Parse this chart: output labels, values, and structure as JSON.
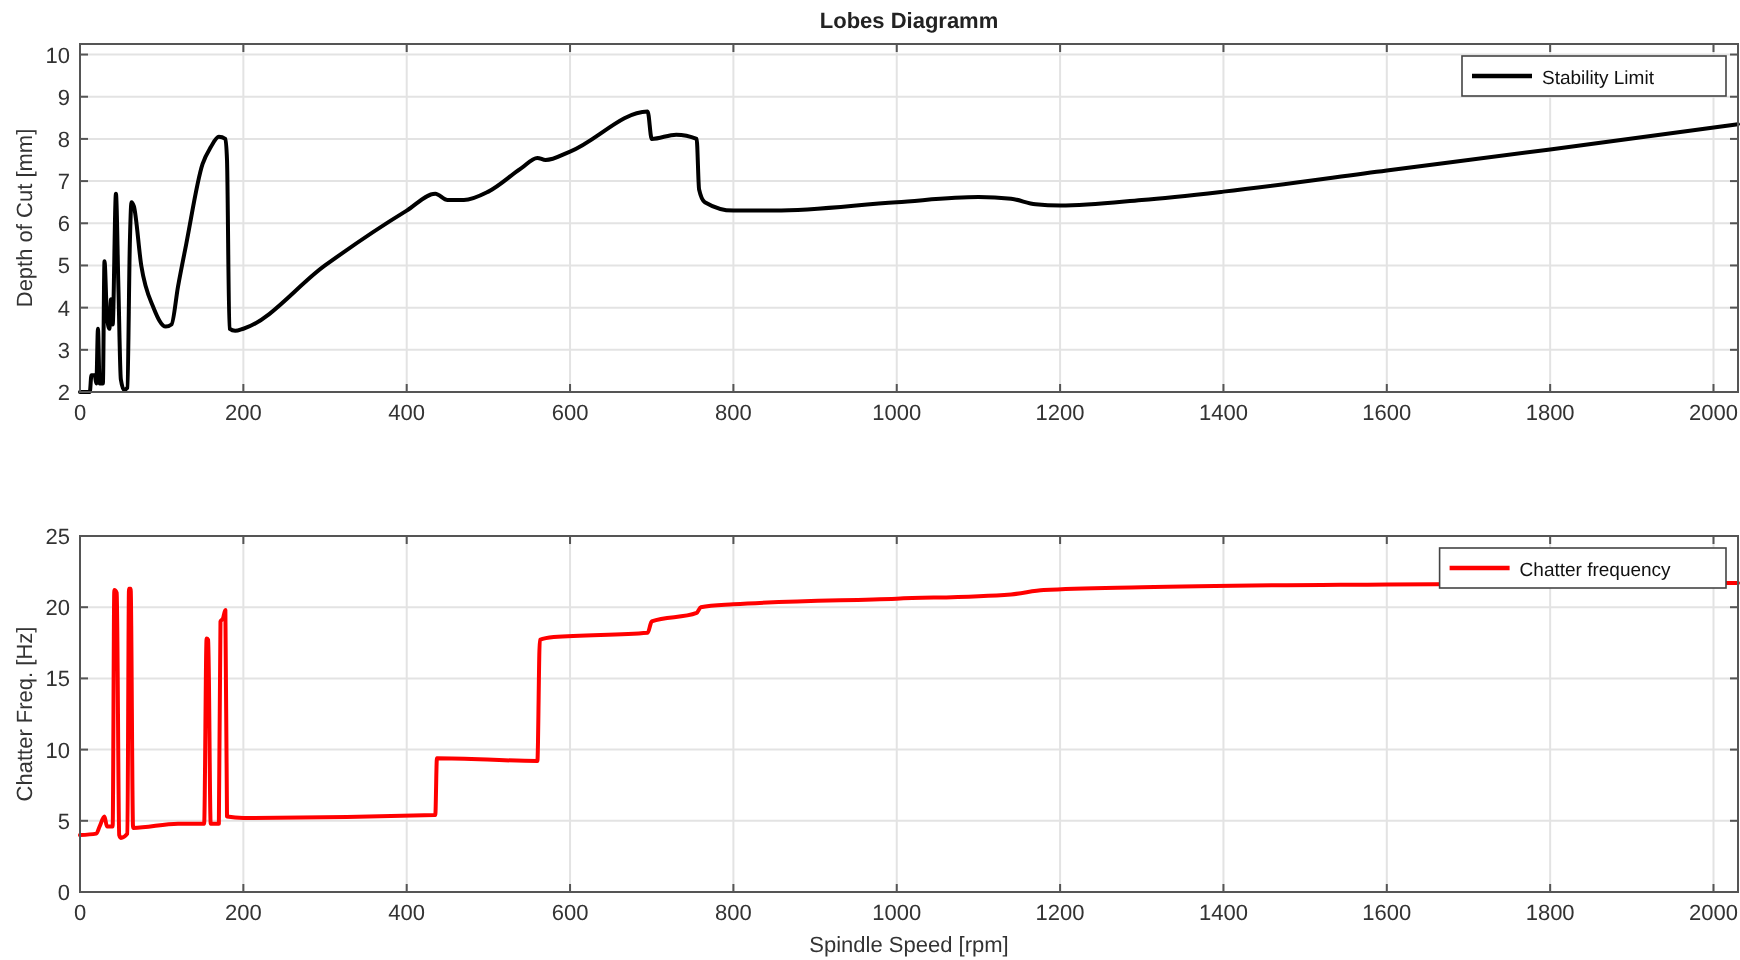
{
  "chart_data": [
    {
      "type": "line",
      "title": "Lobes Diagramm",
      "ylabel": "Depth of Cut [mm]",
      "xlim": [
        0,
        2030
      ],
      "xticks": [
        0,
        200,
        400,
        600,
        800,
        1000,
        1200,
        1400,
        1600,
        1800,
        2000
      ],
      "ylim": [
        2,
        10.25
      ],
      "yticks": [
        2,
        3,
        4,
        5,
        6,
        7,
        8,
        9,
        10
      ],
      "grid": true,
      "legend": "top right",
      "series": [
        {
          "name": "Stability Limit",
          "color": "#000000",
          "x": [
            0,
            12,
            14,
            18,
            20,
            22,
            24,
            28,
            30,
            33,
            36,
            38,
            40,
            44,
            47,
            50,
            54,
            58,
            61,
            63,
            66,
            75,
            90,
            105,
            112,
            120,
            130,
            150,
            160,
            170,
            178,
            180,
            183,
            190,
            200,
            300,
            400,
            435,
            450,
            470,
            500,
            540,
            560,
            570,
            600,
            695,
            700,
            730,
            755,
            758,
            765,
            800,
            850,
            1000,
            1100,
            1140,
            1170,
            1200,
            1300,
            1400,
            1600,
            1800,
            2030
          ],
          "values": [
            2,
            2,
            2.4,
            2.4,
            2.2,
            3.5,
            2.2,
            2.2,
            5.1,
            3.8,
            3.5,
            4.2,
            3.6,
            6.7,
            4.5,
            2.3,
            2.05,
            2.1,
            5.5,
            6.5,
            6.4,
            5,
            4,
            3.55,
            3.6,
            4.5,
            5.5,
            7.4,
            7.8,
            8.05,
            8,
            7.5,
            3.5,
            3.45,
            3.5,
            5,
            6.3,
            6.7,
            6.55,
            6.55,
            6.75,
            7.3,
            7.55,
            7.5,
            7.7,
            8.65,
            8,
            8.1,
            8,
            6.8,
            6.5,
            6.3,
            6.3,
            6.5,
            6.62,
            6.58,
            6.45,
            6.42,
            6.55,
            6.75,
            7.25,
            7.75,
            8.35
          ]
        }
      ]
    },
    {
      "type": "line",
      "xlabel": "Spindle Speed [rpm]",
      "ylabel": "Chatter Freq. [Hz]",
      "xlim": [
        0,
        2030
      ],
      "xticks": [
        0,
        200,
        400,
        600,
        800,
        1000,
        1200,
        1400,
        1600,
        1800,
        2000
      ],
      "ylim": [
        0,
        25
      ],
      "yticks": [
        0,
        5,
        10,
        15,
        20,
        25
      ],
      "grid": true,
      "legend": "top right",
      "series": [
        {
          "name": "Chatter frequency",
          "color": "#ff0000",
          "x": [
            0,
            20,
            24,
            30,
            33,
            40,
            42,
            45,
            48,
            50,
            58,
            60,
            62,
            65,
            120,
            152,
            155,
            157,
            160,
            170,
            172,
            175,
            178,
            180,
            200,
            435,
            437,
            560,
            563,
            580,
            695,
            700,
            755,
            760,
            800,
            1000,
            1140,
            1180,
            1300,
            1600,
            2030
          ],
          "values": [
            4,
            4.1,
            4.6,
            5.3,
            4.6,
            4.6,
            21.2,
            21,
            4,
            3.8,
            4.1,
            21.3,
            21.3,
            4.5,
            4.8,
            4.8,
            17.8,
            17.7,
            4.8,
            4.8,
            19,
            19.2,
            19.8,
            5.3,
            5.2,
            5.4,
            9.4,
            9.2,
            17.7,
            17.9,
            18.2,
            19,
            19.6,
            20,
            20.2,
            20.6,
            20.9,
            21.2,
            21.4,
            21.6,
            21.7
          ]
        }
      ]
    }
  ]
}
